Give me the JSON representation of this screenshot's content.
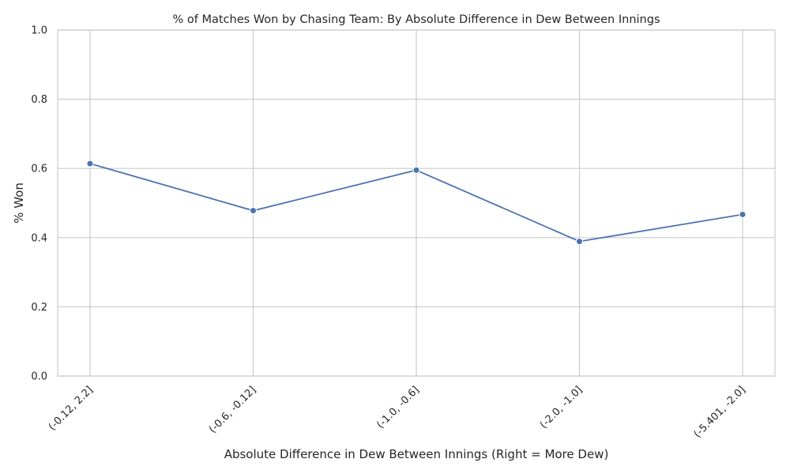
{
  "chart_data": {
    "type": "line",
    "title": "% of Matches Won by Chasing Team: By Absolute Difference in Dew Between Innings",
    "xlabel": "Absolute Difference in Dew Between Innings (Right = More Dew)",
    "ylabel": "% Won",
    "categories": [
      "(-0.12, 2.2]",
      "(-0.6, -0.12]",
      "(-1.0, -0.6]",
      "(-2.0, -1.0]",
      "(-5.401, -2.0]"
    ],
    "series": [
      {
        "values": [
          0.614,
          0.478,
          0.595,
          0.389,
          0.467
        ]
      }
    ],
    "ylim": [
      0,
      1
    ],
    "yticks": [
      "0.0",
      "0.2",
      "0.4",
      "0.6",
      "0.8",
      "1.0"
    ],
    "grid": true,
    "line_color": "#4c72b0"
  }
}
